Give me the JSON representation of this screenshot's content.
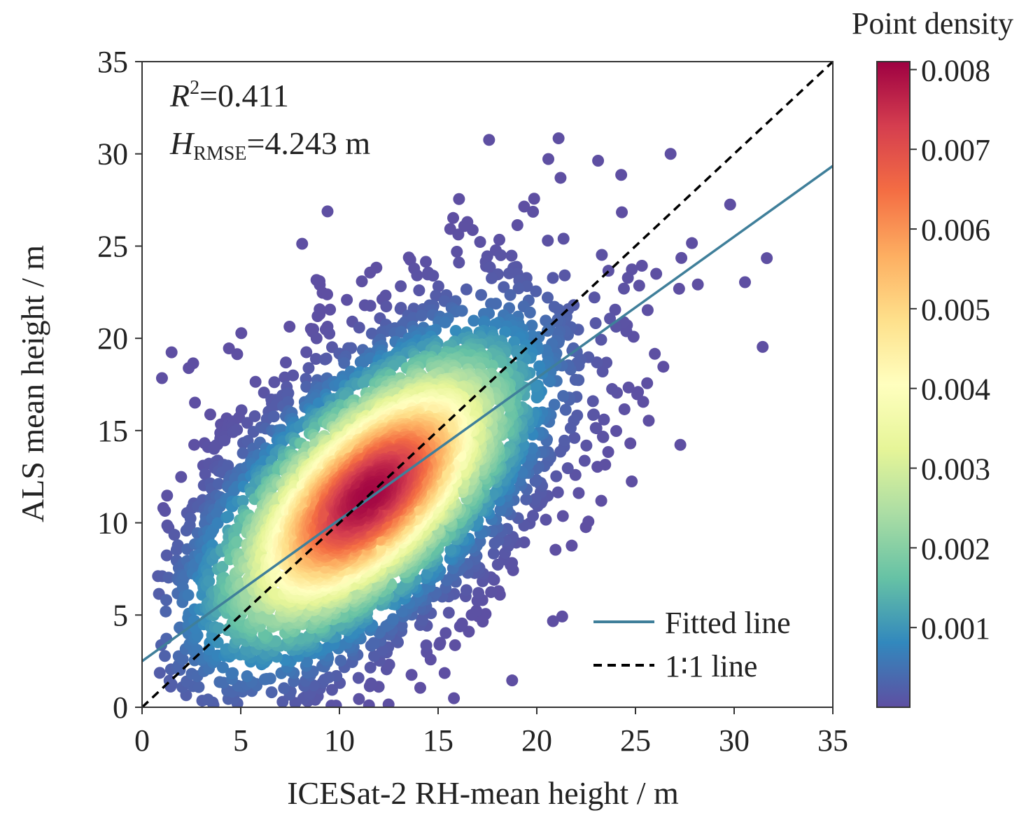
{
  "chart_data": {
    "type": "scatter",
    "subtype": "density-scatter",
    "xlabel": "ICESat-2 RH-mean height / m",
    "ylabel": "ALS mean height / m",
    "xlim": [
      0,
      35
    ],
    "ylim": [
      0,
      35
    ],
    "xticks": [
      "0",
      "5",
      "10",
      "15",
      "20",
      "25",
      "30",
      "35"
    ],
    "yticks": [
      "0",
      "5",
      "10",
      "15",
      "20",
      "25",
      "30",
      "35"
    ],
    "grid": false,
    "annotations": {
      "r2_label": "R",
      "r2_sup": "2",
      "r2_value": "=0.411",
      "rmse_label": "H",
      "rmse_sub": "RMSE",
      "rmse_value": "=4.243 m"
    },
    "fitted_line": {
      "name": "Fitted line",
      "intercept": 2.5,
      "slope": 0.767,
      "color": "#3f7f9a"
    },
    "one_to_one_line": {
      "name": "1∶1 line",
      "intercept": 0,
      "slope": 1,
      "color": "#000000"
    },
    "legend": {
      "placement": "bottom-right",
      "entries": [
        "Fitted line",
        "1∶1 line"
      ]
    },
    "colorbar": {
      "title": "Point density",
      "range": [
        0,
        0.0081
      ],
      "ticks": [
        "0.008",
        "0.007",
        "0.006",
        "0.005",
        "0.004",
        "0.003",
        "0.002",
        "0.001"
      ],
      "tick_values": [
        0.008,
        0.007,
        0.006,
        0.005,
        0.004,
        0.003,
        0.002,
        0.001
      ],
      "colormap": [
        "#5e4fa2",
        "#3288bd",
        "#66c2a5",
        "#abdda4",
        "#e6f598",
        "#ffffbf",
        "#fee08b",
        "#fdae61",
        "#f46d43",
        "#d53e4f",
        "#9e0142"
      ]
    }
  }
}
